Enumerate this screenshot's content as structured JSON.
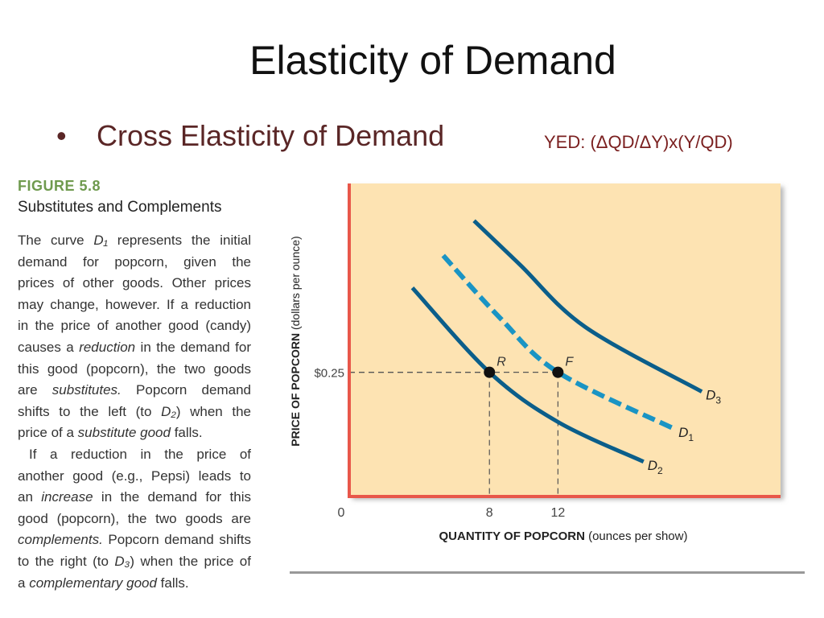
{
  "slide": {
    "title": "Elasticity of Demand",
    "bullet": "Cross Elasticity of Demand",
    "formula": "YED: (ΔQD/ΔY)x(Y/QD)"
  },
  "figure": {
    "number": "FIGURE 5.8",
    "title": "Substitutes and Complements",
    "lines": [
      [
        {
          "t": "The curve "
        },
        {
          "t": "D₁",
          "i": true
        },
        {
          "t": " represents the initial"
        }
      ],
      [
        {
          "t": "demand for popcorn, given the"
        }
      ],
      [
        {
          "t": "prices of other goods. Other prices"
        }
      ],
      [
        {
          "t": "may change, however. If a reduction"
        }
      ],
      [
        {
          "t": "in the price of another good (candy)"
        }
      ],
      [
        {
          "t": "causes a "
        },
        {
          "t": "reduction",
          "i": true
        },
        {
          "t": " in the demand for"
        }
      ],
      [
        {
          "t": "this good (popcorn), the two goods"
        }
      ],
      [
        {
          "t": "are "
        },
        {
          "t": "substitutes.",
          "i": true
        },
        {
          "t": " Popcorn demand"
        }
      ],
      [
        {
          "t": "shifts to the left (to "
        },
        {
          "t": "D₂",
          "i": true
        },
        {
          "t": ") when the"
        }
      ],
      [
        {
          "t": "price of a "
        },
        {
          "t": "substitute good",
          "i": true
        },
        {
          "t": " falls."
        }
      ],
      [
        {
          "t": "If a reduction in the price of"
        }
      ],
      [
        {
          "t": "another good (e.g., Pepsi) leads to"
        }
      ],
      [
        {
          "t": "an "
        },
        {
          "t": "increase",
          "i": true
        },
        {
          "t": " in the demand for this"
        }
      ],
      [
        {
          "t": "good (popcorn), the two goods are"
        }
      ],
      [
        {
          "t": "complements.",
          "i": true
        },
        {
          "t": " Popcorn demand shifts"
        }
      ],
      [
        {
          "t": "to the right (to "
        },
        {
          "t": "D₃",
          "i": true
        },
        {
          "t": ") when the price of"
        }
      ],
      [
        {
          "t": "a "
        },
        {
          "t": "complementary good",
          "i": true
        },
        {
          "t": " falls."
        }
      ]
    ]
  },
  "chart_data": {
    "type": "line",
    "xlabel": "QUANTITY OF POPCORN",
    "xlabel_unit": "(ounces per show)",
    "ylabel": "PRICE OF POPCORN",
    "ylabel_unit": "(dollars per ounce)",
    "xlim": [
      0,
      25
    ],
    "ylim": [
      0,
      0.63
    ],
    "origin_label": "0",
    "x_ticks": [
      {
        "value": 8,
        "label": "8"
      },
      {
        "value": 12,
        "label": "12"
      }
    ],
    "y_ticks": [
      {
        "value": 0.25,
        "label": "$0.25"
      }
    ],
    "grid": false,
    "series": [
      {
        "name": "D2",
        "label": "D",
        "sub": "2",
        "style": "solid",
        "color": "#0b5e8a",
        "points": [
          [
            3.5,
            0.42
          ],
          [
            8,
            0.25
          ],
          [
            12,
            0.15
          ],
          [
            17,
            0.07
          ]
        ]
      },
      {
        "name": "D1",
        "label": "D",
        "sub": "1",
        "style": "dashed",
        "color": "#1a94c4",
        "points": [
          [
            5.3,
            0.485
          ],
          [
            8.6,
            0.36
          ],
          [
            12,
            0.25
          ],
          [
            18.8,
            0.136
          ]
        ]
      },
      {
        "name": "D3",
        "label": "D",
        "sub": "3",
        "style": "solid",
        "color": "#0b5e8a",
        "points": [
          [
            7.1,
            0.555
          ],
          [
            9.8,
            0.466
          ],
          [
            13.6,
            0.341
          ],
          [
            20.4,
            0.211
          ]
        ]
      }
    ],
    "points": [
      {
        "label": "R",
        "x": 8,
        "y": 0.25
      },
      {
        "label": "F",
        "x": 12,
        "y": 0.25
      }
    ],
    "colors": {
      "background": "#fde3b2",
      "axis": "#e8574a"
    }
  }
}
